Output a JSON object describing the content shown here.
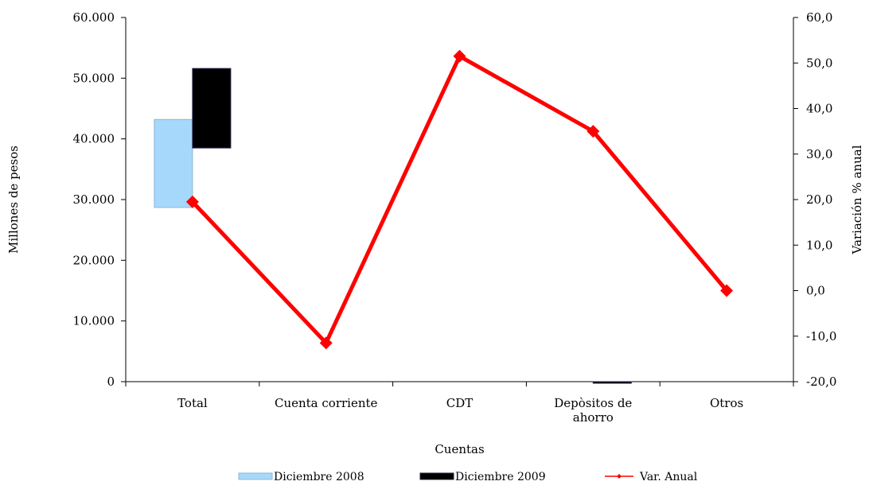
{
  "chart_data": {
    "type": "bar",
    "categories": [
      "Total",
      "Cuenta corriente",
      "CDT",
      "Depòsitos de ahorro",
      "Otros"
    ],
    "category_lines": [
      [
        "Total"
      ],
      [
        "Cuenta corriente"
      ],
      [
        "CDT"
      ],
      [
        "Depòsitos de",
        "ahorro"
      ],
      [
        "Otros"
      ]
    ],
    "series": [
      {
        "name": "Diciembre 2008",
        "kind": "bar",
        "axis": "left",
        "color": "#a6d8fb",
        "ranges": [
          [
            28700,
            43200
          ],
          null,
          null,
          null,
          null
        ]
      },
      {
        "name": "Diciembre 2009",
        "kind": "bar",
        "axis": "left",
        "color": "#000000",
        "ranges": [
          [
            38500,
            51600
          ],
          null,
          null,
          [
            -200,
            0
          ],
          null
        ]
      },
      {
        "name": "Var. Anual",
        "kind": "line",
        "axis": "right",
        "color": "#ff0000",
        "values": [
          19.5,
          -11.5,
          51.5,
          35.0,
          0.0
        ]
      }
    ],
    "xlabel": "Cuentas",
    "ylabel_left": "Millones de pesos",
    "ylabel_right": "Variación % anual",
    "ylim_left": [
      0,
      60000
    ],
    "ylim_right": [
      -20,
      60
    ],
    "yticks_left": [
      "0",
      "10.000",
      "20.000",
      "30.000",
      "40.000",
      "50.000",
      "60.000"
    ],
    "yticks_right": [
      "-20,0",
      "-10,0",
      "0,0",
      "10,0",
      "20,0",
      "30,0",
      "40,0",
      "50,0",
      "60,0"
    ],
    "grid": false,
    "legend_position": "bottom"
  }
}
